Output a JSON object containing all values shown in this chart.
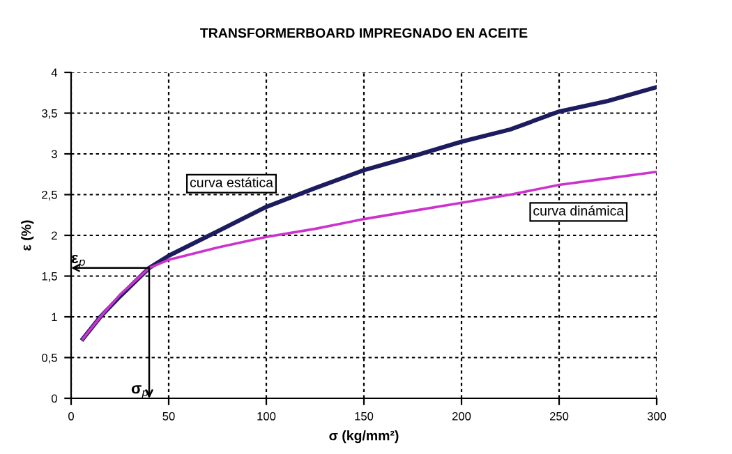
{
  "chart_data": {
    "type": "line",
    "title": "TRANSFORMERBOARD IMPREGNADO EN ACEITE",
    "xlabel": "σ (kg/mm²)",
    "ylabel": "ε (%)",
    "series": [
      {
        "name": "curva estática",
        "color": "#1c1c5e",
        "x": [
          6,
          15,
          25,
          40,
          50,
          75,
          100,
          125,
          150,
          175,
          200,
          225,
          250,
          275,
          300
        ],
        "values": [
          0.73,
          1.0,
          1.25,
          1.6,
          1.75,
          2.05,
          2.35,
          2.58,
          2.8,
          2.97,
          3.15,
          3.3,
          3.52,
          3.65,
          3.82
        ]
      },
      {
        "name": "curva dinámica",
        "color": "#cc33cc",
        "x": [
          6,
          15,
          25,
          40,
          50,
          75,
          100,
          125,
          150,
          175,
          200,
          225,
          250,
          275,
          300
        ],
        "values": [
          0.73,
          1.0,
          1.27,
          1.6,
          1.7,
          1.85,
          1.98,
          2.08,
          2.2,
          2.3,
          2.4,
          2.5,
          2.62,
          2.7,
          2.78
        ]
      }
    ],
    "annotations": [
      {
        "text": "ε$_{p}$",
        "x": 40,
        "y": 1.6
      },
      {
        "text": "σ$_{p}$",
        "x": 40,
        "y": 1.6
      }
    ],
    "xlim": [
      0,
      300
    ],
    "xticks": [
      0,
      50,
      100,
      150,
      200,
      250,
      300
    ],
    "ylim": [
      0,
      4
    ],
    "yticks": [
      0,
      {
        "value": 0.5,
        "label": "0,5"
      },
      1,
      {
        "value": 1.5,
        "label": "1,5"
      },
      2,
      {
        "value": 2.5,
        "label": "2,5"
      },
      3,
      {
        "value": 3.5,
        "label": "3,5"
      },
      4
    ],
    "grid": true,
    "marker": "none",
    "line_style": "solid",
    "legend": false
  }
}
